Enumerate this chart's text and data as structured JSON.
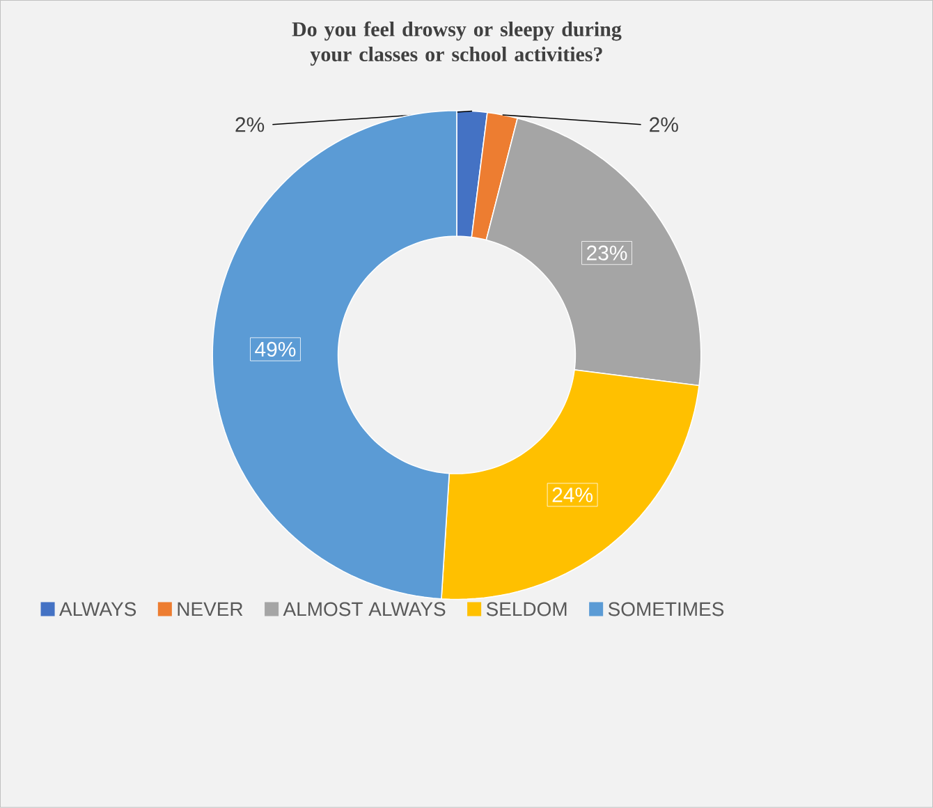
{
  "chart_data": {
    "type": "donut",
    "title": "Do you feel drowsy or sleepy during your classes or school activities?",
    "categories": [
      "ALWAYS",
      "NEVER",
      "ALMOST ALWAYS",
      "SELDOM",
      "SOMETIMES"
    ],
    "values": [
      2,
      2,
      23,
      24,
      49
    ],
    "colors": [
      "#4472c4",
      "#ed7d31",
      "#a5a5a5",
      "#ffc000",
      "#5b9bd5"
    ],
    "value_labels": [
      "2%",
      "2%",
      "23%",
      "24%",
      "49%"
    ],
    "legend": "bottom"
  }
}
